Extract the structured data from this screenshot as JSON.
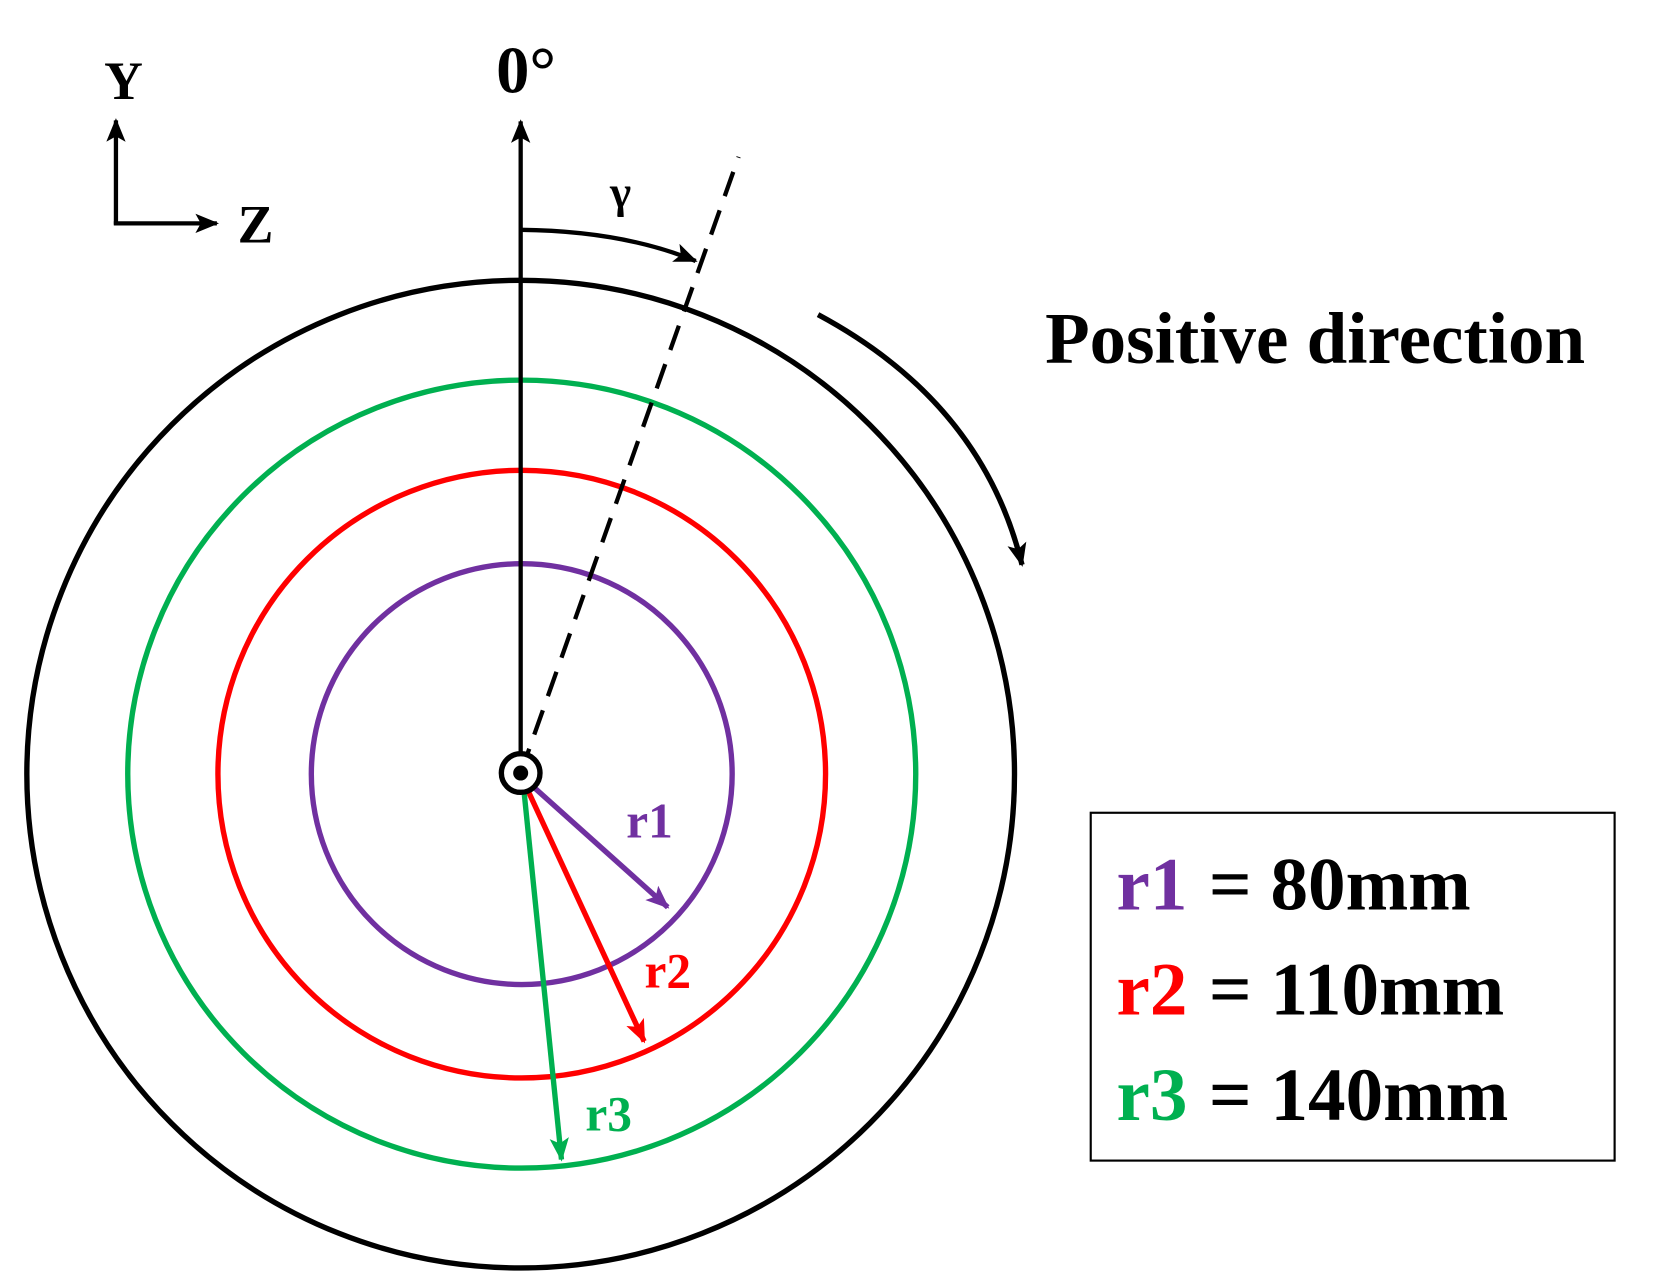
{
  "axes": {
    "y_label": "Y",
    "z_label": "Z"
  },
  "zero_label": "0°",
  "angle_label": "γ",
  "direction_label": "Positive direction",
  "radii": [
    {
      "name": "r1",
      "color": "#7030a0"
    },
    {
      "name": "r2",
      "color": "#ff0000"
    },
    {
      "name": "r3",
      "color": "#00b050"
    }
  ],
  "legend": [
    {
      "name": "r1",
      "text": "= 80mm"
    },
    {
      "name": "r2",
      "text": "= 110mm"
    },
    {
      "name": "r3",
      "text": "= 140mm"
    }
  ]
}
